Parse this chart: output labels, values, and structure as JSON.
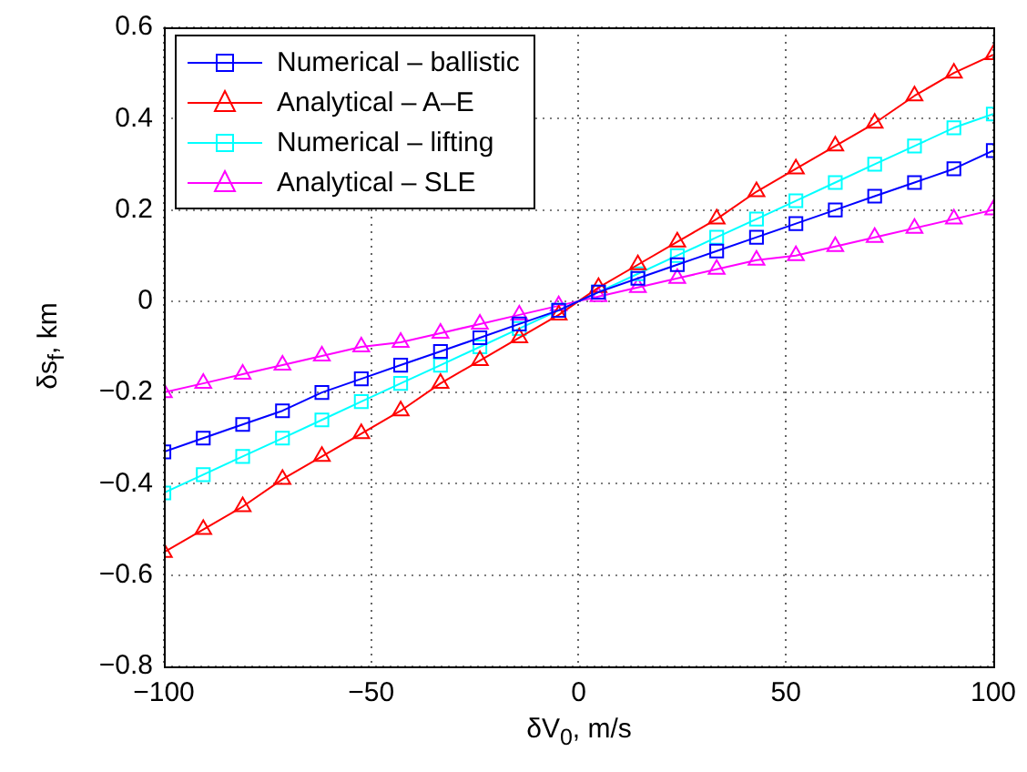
{
  "chart_data": {
    "type": "line",
    "xlabel": "δV$_{0}$, m/s",
    "ylabel": "δs$_{f}$, km",
    "x": [
      -100,
      -90.5,
      -81,
      -71.4,
      -61.9,
      -52.4,
      -42.9,
      -33.3,
      -23.8,
      -14.3,
      -4.8,
      4.8,
      14.3,
      23.8,
      33.3,
      42.9,
      52.4,
      61.9,
      71.4,
      81,
      90.5,
      100
    ],
    "series": [
      {
        "name": "Numerical – ballistic",
        "color": "#0000ff",
        "marker": "square",
        "values": [
          -0.33,
          -0.3,
          -0.27,
          -0.24,
          -0.2,
          -0.17,
          -0.14,
          -0.11,
          -0.08,
          -0.05,
          -0.02,
          0.02,
          0.05,
          0.08,
          0.11,
          0.14,
          0.17,
          0.2,
          0.23,
          0.26,
          0.29,
          0.33
        ]
      },
      {
        "name": "Analytical – A–E",
        "color": "#ff0000",
        "marker": "triangle",
        "values": [
          -0.55,
          -0.5,
          -0.45,
          -0.39,
          -0.34,
          -0.29,
          -0.24,
          -0.18,
          -0.13,
          -0.08,
          -0.03,
          0.03,
          0.08,
          0.13,
          0.18,
          0.24,
          0.29,
          0.34,
          0.39,
          0.45,
          0.5,
          0.54
        ]
      },
      {
        "name": "Numerical – lifting",
        "color": "#00ffff",
        "marker": "square",
        "values": [
          -0.42,
          -0.38,
          -0.34,
          -0.3,
          -0.26,
          -0.22,
          -0.18,
          -0.14,
          -0.1,
          -0.06,
          -0.02,
          0.02,
          0.06,
          0.1,
          0.14,
          0.18,
          0.22,
          0.26,
          0.3,
          0.34,
          0.38,
          0.41
        ]
      },
      {
        "name": "Analytical – SLE",
        "color": "#ff00ff",
        "marker": "triangle",
        "values": [
          -0.2,
          -0.18,
          -0.16,
          -0.14,
          -0.12,
          -0.1,
          -0.09,
          -0.07,
          -0.05,
          -0.03,
          -0.01,
          0.01,
          0.03,
          0.05,
          0.07,
          0.09,
          0.1,
          0.12,
          0.14,
          0.16,
          0.18,
          0.2
        ]
      }
    ],
    "xlim": [
      -100,
      100
    ],
    "xticks": [
      {
        "value": -100,
        "label": "−100"
      },
      {
        "value": -50,
        "label": "−50"
      },
      0,
      50,
      100
    ],
    "ylim": [
      -0.8,
      0.6
    ],
    "yticks": [
      {
        "value": -0.8,
        "label": "−0.8"
      },
      {
        "value": -0.6,
        "label": "−0.6"
      },
      {
        "value": -0.4,
        "label": "−0.4"
      },
      {
        "value": -0.2,
        "label": "−0.2"
      },
      0,
      0.2,
      0.4,
      0.6
    ],
    "grid": true,
    "legend": "top left",
    "line_style": "solid"
  }
}
